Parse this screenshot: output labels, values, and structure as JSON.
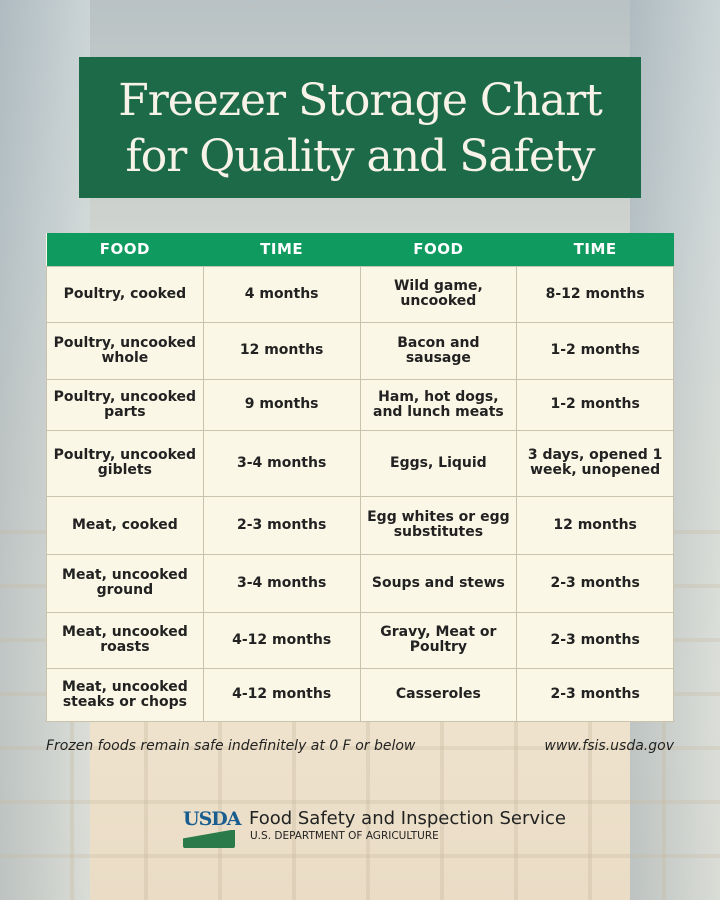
{
  "title": {
    "line1": "Freezer Storage Chart",
    "line2": "for Quality and Safety"
  },
  "table": {
    "headers": [
      "FOOD",
      "TIME",
      "FOOD",
      "TIME"
    ],
    "rows": [
      [
        "Poultry, cooked",
        "4 months",
        "Wild game, uncooked",
        "8-12 months"
      ],
      [
        "Poultry, uncooked whole",
        "12 months",
        "Bacon and sausage",
        "1-2 months"
      ],
      [
        "Poultry, uncooked parts",
        "9 months",
        "Ham, hot dogs, and lunch meats",
        "1-2 months"
      ],
      [
        "Poultry, uncooked giblets",
        "3-4 months",
        "Eggs, Liquid",
        "3 days, opened 1 week, unopened"
      ],
      [
        "Meat, cooked",
        "2-3 months",
        "Egg whites or egg substitutes",
        "12 months"
      ],
      [
        "Meat, uncooked ground",
        "3-4 months",
        "Soups and stews",
        "2-3 months"
      ],
      [
        "Meat, uncooked roasts",
        "4-12 months",
        "Gravy, Meat or Poultry",
        "2-3 months"
      ],
      [
        "Meat, uncooked steaks or chops",
        "4-12 months",
        "Casseroles",
        "2-3 months"
      ]
    ]
  },
  "footer": {
    "note": "Frozen foods remain safe indefinitely at 0 F or below",
    "url": "www.fsis.usda.gov"
  },
  "logo": {
    "text": "USDA",
    "agency": "Food Safety and Inspection Service",
    "department": "U.S. DEPARTMENT OF AGRICULTURE"
  },
  "colors": {
    "title_bg": "#1d6a48",
    "header_bg": "#0f9a5f",
    "cell_bg": "#fbf7e6"
  }
}
